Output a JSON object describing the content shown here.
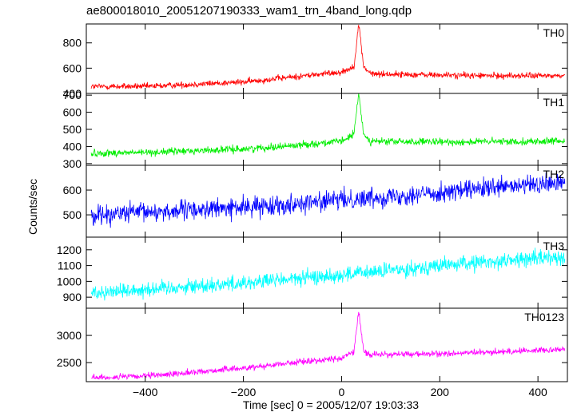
{
  "chart_data": {
    "type": "line",
    "title": "ae800018010_20051207190333_wam1_trn_4band_long.qdp",
    "xlabel": "Time [sec] 0 = 2005/12/07 19:03:33",
    "ylabel": "Counts/sec",
    "xlim": [
      -520,
      460
    ],
    "x_ticks": [
      -400,
      -200,
      0,
      200,
      400
    ],
    "panels": [
      {
        "name": "TH0",
        "color": "#ff0000",
        "ylim": [
          400,
          950
        ],
        "y_ticks": [
          400,
          600,
          800
        ],
        "trend": [
          [
            -510,
            455
          ],
          [
            -400,
            455
          ],
          [
            -200,
            490
          ],
          [
            -100,
            530
          ],
          [
            0,
            570
          ],
          [
            25,
            610
          ],
          [
            35,
            950
          ],
          [
            45,
            610
          ],
          [
            60,
            555
          ],
          [
            200,
            545
          ],
          [
            300,
            540
          ],
          [
            455,
            540
          ]
        ],
        "noise": 18
      },
      {
        "name": "TH1",
        "color": "#00ee00",
        "ylim": [
          290,
          710
        ],
        "y_ticks": [
          300,
          400,
          500,
          600,
          700
        ],
        "trend": [
          [
            -510,
            360
          ],
          [
            -400,
            365
          ],
          [
            -200,
            385
          ],
          [
            -100,
            405
          ],
          [
            0,
            430
          ],
          [
            25,
            470
          ],
          [
            35,
            710
          ],
          [
            45,
            470
          ],
          [
            60,
            430
          ],
          [
            200,
            425
          ],
          [
            300,
            428
          ],
          [
            455,
            430
          ]
        ],
        "noise": 15
      },
      {
        "name": "TH2",
        "color": "#0000ff",
        "ylim": [
          410,
          700
        ],
        "y_ticks": [
          500,
          600
        ],
        "trend": [
          [
            -510,
            500
          ],
          [
            -400,
            510
          ],
          [
            -200,
            530
          ],
          [
            0,
            560
          ],
          [
            200,
            590
          ],
          [
            455,
            630
          ]
        ],
        "noise": 28
      },
      {
        "name": "TH3",
        "color": "#00ffff",
        "ylim": [
          830,
          1280
        ],
        "y_ticks": [
          900,
          1000,
          1100,
          1200
        ],
        "trend": [
          [
            -510,
            930
          ],
          [
            -400,
            950
          ],
          [
            -200,
            990
          ],
          [
            0,
            1040
          ],
          [
            200,
            1100
          ],
          [
            455,
            1160
          ]
        ],
        "noise": 35
      },
      {
        "name": "TH0123",
        "color": "#ff00ff",
        "ylim": [
          2150,
          3500
        ],
        "y_ticks": [
          2500,
          3000
        ],
        "trend": [
          [
            -510,
            2220
          ],
          [
            -400,
            2250
          ],
          [
            -200,
            2400
          ],
          [
            -100,
            2500
          ],
          [
            0,
            2580
          ],
          [
            25,
            2700
          ],
          [
            35,
            3450
          ],
          [
            45,
            2700
          ],
          [
            60,
            2650
          ],
          [
            200,
            2660
          ],
          [
            300,
            2690
          ],
          [
            455,
            2750
          ]
        ],
        "noise": 40
      }
    ],
    "grid": false,
    "legend": "none"
  }
}
